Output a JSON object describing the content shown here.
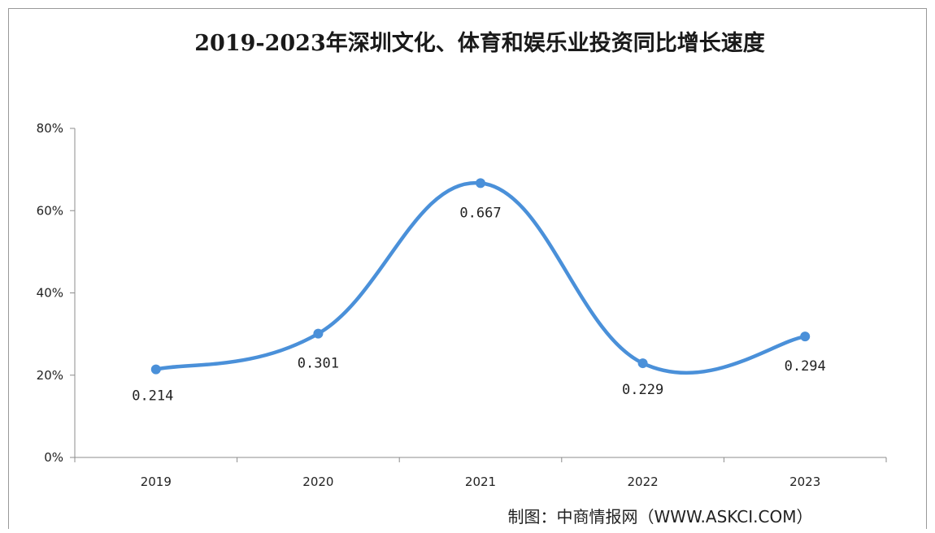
{
  "chart_data": {
    "type": "line",
    "title": "2019-2023年深圳文化、体育和娱乐业投资同比增长速度",
    "categories": [
      "2019",
      "2020",
      "2021",
      "2022",
      "2023"
    ],
    "series": [
      {
        "values": [
          0.214,
          0.301,
          0.667,
          0.229,
          0.294
        ],
        "data_labels": [
          "0.214",
          "0.301",
          "0.667",
          "0.229",
          "0.294"
        ]
      }
    ],
    "y_ticks": [
      "0%",
      "20%",
      "40%",
      "60%",
      "80%"
    ],
    "y_tick_values": [
      0,
      0.2,
      0.4,
      0.6,
      0.8
    ],
    "ylim": [
      0,
      0.8
    ],
    "smooth": true,
    "grid": false,
    "legend": "none",
    "line_color": "#4a90d9",
    "source": "制图：中商情报网（WWW.ASKCI.COM）"
  }
}
